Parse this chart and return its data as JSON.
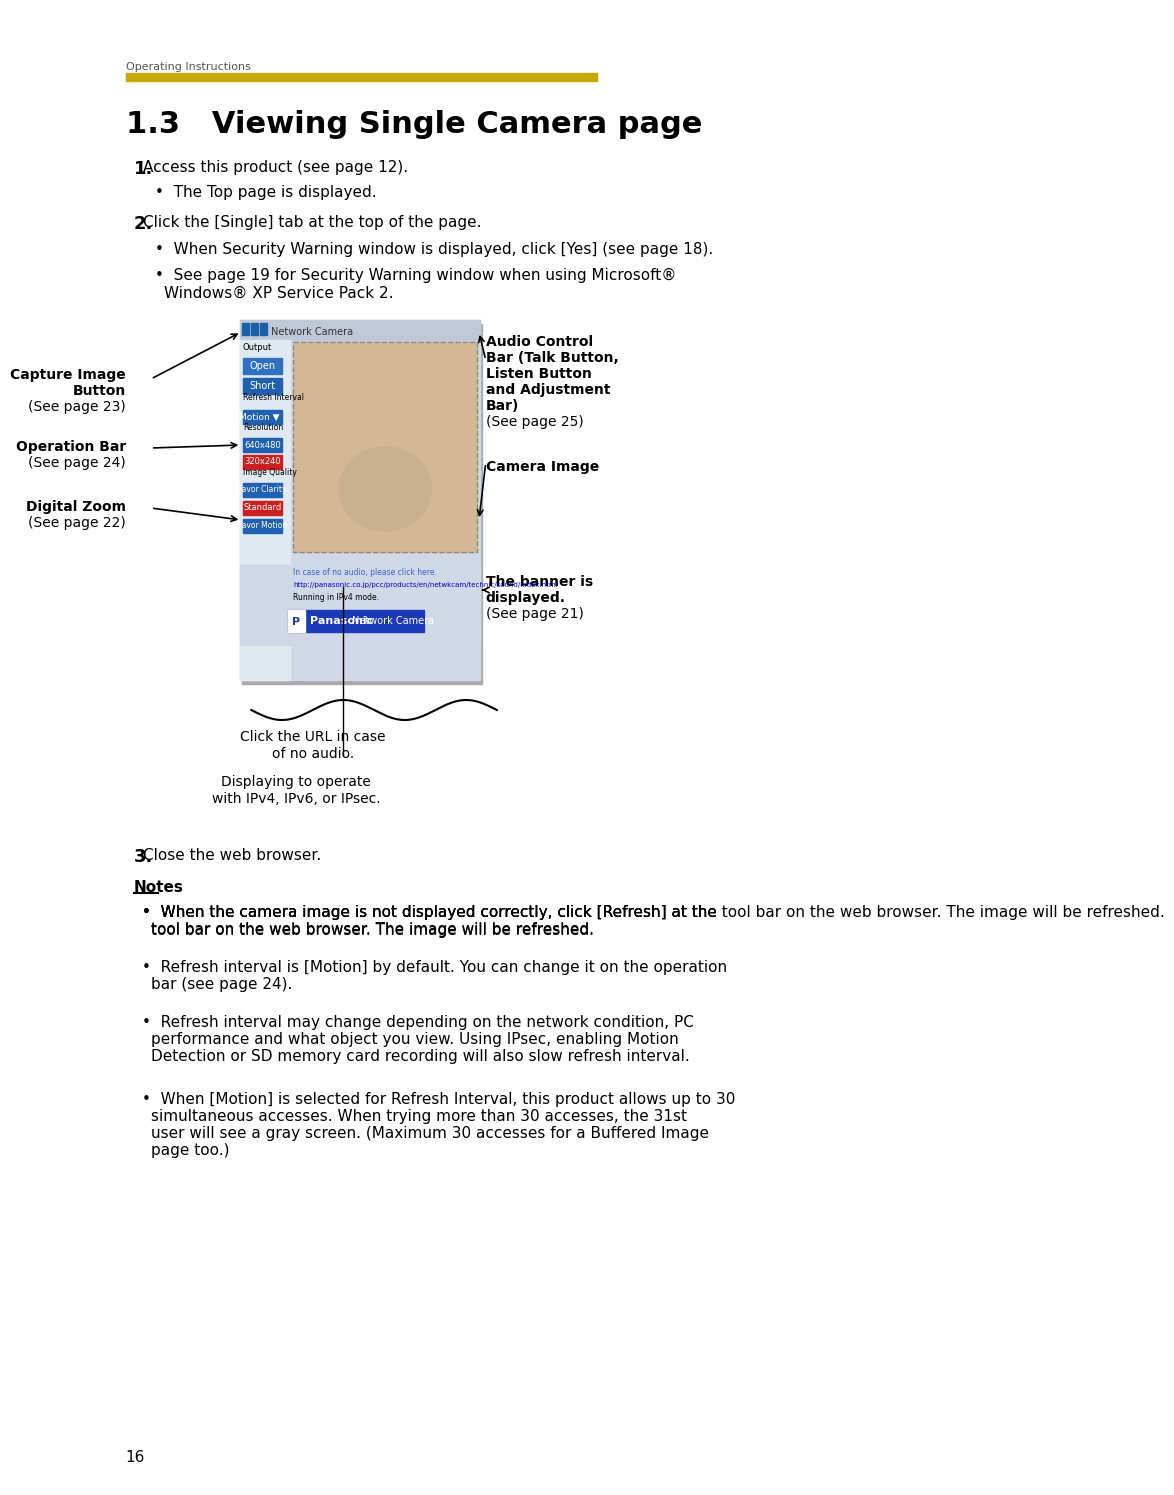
{
  "page_bg": "#ffffff",
  "header_text": "Operating Instructions",
  "header_color": "#555555",
  "gold_bar_color": "#C8A800",
  "title": "1.3   Viewing Single Camera page",
  "title_color": "#000000",
  "body_text_color": "#000000",
  "page_number": "16",
  "step1_bold": "1.",
  "step1_text": "  Access this product (see page 12).",
  "step1_bullet": "The Top page is displayed.",
  "step2_bold": "2.",
  "step2_text": "  Click the [Single] tab at the top of the page.",
  "step2_bullet1": "When Security Warning window is displayed, click [Yes] (see page 18).",
  "step2_bullet2": "See page 19 for Security Warning window when using Microsoft®\nWindows® XP Service Pack 2.",
  "label_capture_image_button": "Capture Image\nButton\n(See page 23)",
  "label_operation_bar": "Operation Bar\n(See page 24)",
  "label_digital_zoom": "Digital Zoom\n(See page 22)",
  "label_audio_control": "Audio Control\nBar (Talk Button,\nListen Button\nand Adjustment\nBar)\n(See page 25)",
  "label_camera_image": "Camera Image",
  "label_banner": "The banner is\ndisplayed.\n(See page 21)",
  "label_url_click": "Click the URL in case\nof no audio.",
  "label_displaying": "Displaying to operate\nwith IPv4, IPv6, or IPsec.",
  "step3_bold": "3.",
  "step3_text": "  Close the web browser.",
  "notes_title": "Notes",
  "note1": "When the camera image is not displayed correctly, click [Refresh] at the\ntool bar on the web browser. The image will be refreshed.",
  "note2": "Refresh interval is [Motion] by default. You can change it on the operation\nbar (see page 24).",
  "note3": "Refresh interval may change depending on the network condition, PC\nperformance and what object you view. Using IPsec, enabling Motion\nDetection or SD memory card recording will also slow refresh interval.",
  "note4": "When [Motion] is selected for Refresh Interval, this product allows up to 30\nsimultaneous accesses. When trying more than 30 accesses, the 31st\nuser will see a gray screen. (Maximum 30 accesses for a Buffered Image\npage too.)"
}
